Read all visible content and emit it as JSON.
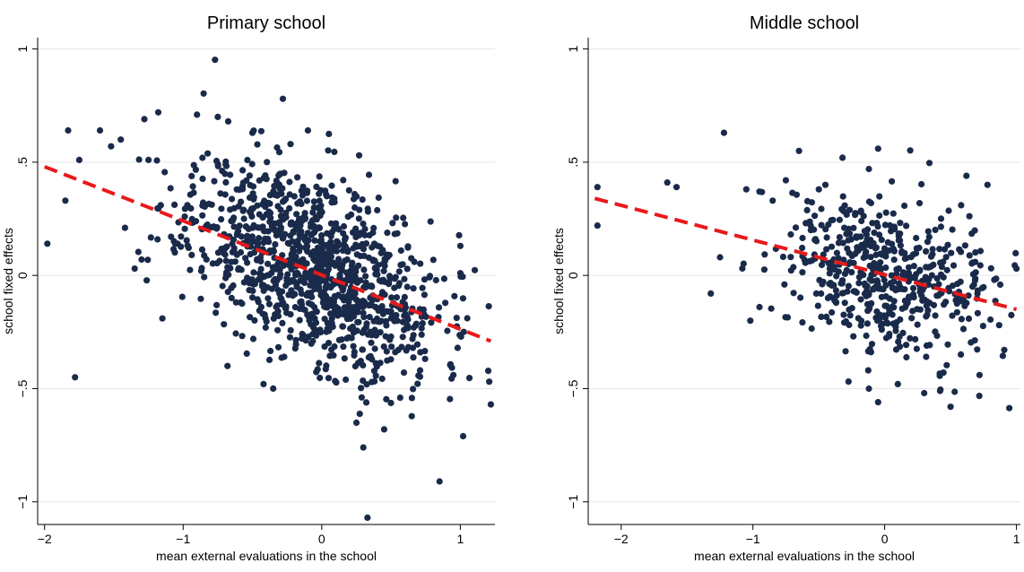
{
  "chart_data": [
    {
      "type": "scatter",
      "title": "Primary school",
      "xlabel": "mean external evaluations in the school",
      "ylabel": "school fixed effects",
      "xlim": [
        -2.05,
        1.25
      ],
      "ylim": [
        -1.1,
        1.05
      ],
      "xticks": [
        {
          "v": -2,
          "label": "−2"
        },
        {
          "v": -1,
          "label": "−1"
        },
        {
          "v": 0,
          "label": "0"
        },
        {
          "v": 1,
          "label": "1"
        }
      ],
      "yticks": [
        {
          "v": -1,
          "label": "−1"
        },
        {
          "v": -0.5,
          "label": "−.5"
        },
        {
          "v": 0,
          "label": "0"
        },
        {
          "v": 0.5,
          "label": ".5"
        },
        {
          "v": 1,
          "label": "1"
        }
      ],
      "grid": true,
      "legend": "none",
      "fit_line": {
        "x": [
          -2.0,
          1.22
        ],
        "y": [
          0.48,
          -0.29
        ]
      },
      "cloud": {
        "n": 1150,
        "x_mean": -0.05,
        "x_sd": 0.45,
        "y_mean": 0.03,
        "y_sd": 0.2,
        "slope": -0.24,
        "seed": 11
      },
      "points": [
        {
          "x": -1.98,
          "y": 0.14
        },
        {
          "x": -1.85,
          "y": 0.33
        },
        {
          "x": -1.83,
          "y": 0.64
        },
        {
          "x": -1.78,
          "y": -0.45
        },
        {
          "x": -1.75,
          "y": 0.51
        },
        {
          "x": -1.6,
          "y": 0.64
        },
        {
          "x": -1.52,
          "y": 0.57
        },
        {
          "x": -1.45,
          "y": 0.6
        },
        {
          "x": -1.28,
          "y": 0.69
        },
        {
          "x": -1.18,
          "y": 0.72
        },
        {
          "x": -1.25,
          "y": 0.51
        },
        {
          "x": -1.15,
          "y": -0.19
        },
        {
          "x": -0.28,
          "y": 0.78
        },
        {
          "x": 0.3,
          "y": -0.76
        },
        {
          "x": 0.33,
          "y": -1.07
        },
        {
          "x": 0.85,
          "y": -0.91
        },
        {
          "x": 1.02,
          "y": -0.71
        },
        {
          "x": 1.22,
          "y": -0.57
        },
        {
          "x": 1.0,
          "y": 0.01
        },
        {
          "x": 0.95,
          "y": -0.44
        },
        {
          "x": -0.9,
          "y": 0.71
        },
        {
          "x": -0.75,
          "y": 0.7
        },
        {
          "x": -0.5,
          "y": 0.63
        },
        {
          "x": -0.1,
          "y": 0.64
        },
        {
          "x": 0.45,
          "y": -0.68
        },
        {
          "x": 0.27,
          "y": 0.53
        },
        {
          "x": -0.68,
          "y": -0.4
        },
        {
          "x": -0.42,
          "y": -0.48
        },
        {
          "x": -1.42,
          "y": 0.21
        },
        {
          "x": -1.35,
          "y": 0.03
        },
        {
          "x": -1.3,
          "y": 0.07
        }
      ]
    },
    {
      "type": "scatter",
      "title": "Middle school",
      "xlabel": "mean external evaluations in the school",
      "ylabel": "school fixed effects",
      "xlim": [
        -2.25,
        1.03
      ],
      "ylim": [
        -1.1,
        1.05
      ],
      "xticks": [
        {
          "v": -2,
          "label": "−2"
        },
        {
          "v": -1,
          "label": "−1"
        },
        {
          "v": 0,
          "label": "0"
        },
        {
          "v": 1,
          "label": "1"
        }
      ],
      "yticks": [
        {
          "v": -1,
          "label": "−1"
        },
        {
          "v": -0.5,
          "label": "−.5"
        },
        {
          "v": 0,
          "label": "0"
        },
        {
          "v": 0.5,
          "label": ".5"
        },
        {
          "v": 1,
          "label": "1"
        }
      ],
      "grid": true,
      "legend": "none",
      "fit_line": {
        "x": [
          -2.2,
          1.0
        ],
        "y": [
          0.34,
          -0.15
        ]
      },
      "cloud": {
        "n": 520,
        "x_mean": 0.0,
        "x_sd": 0.4,
        "y_mean": 0.0,
        "y_sd": 0.17,
        "slope": -0.15,
        "seed": 29
      },
      "points": [
        {
          "x": -2.18,
          "y": 0.39
        },
        {
          "x": -2.18,
          "y": 0.22
        },
        {
          "x": -1.65,
          "y": 0.41
        },
        {
          "x": -1.58,
          "y": 0.39
        },
        {
          "x": -1.22,
          "y": 0.63
        },
        {
          "x": -1.32,
          "y": -0.08
        },
        {
          "x": -0.65,
          "y": 0.55
        },
        {
          "x": -0.32,
          "y": 0.52
        },
        {
          "x": -0.12,
          "y": 0.47
        },
        {
          "x": -0.12,
          "y": -0.08
        },
        {
          "x": -0.05,
          "y": 0.56
        },
        {
          "x": -0.12,
          "y": -0.5
        },
        {
          "x": -0.05,
          "y": -0.56
        },
        {
          "x": 0.1,
          "y": -0.48
        },
        {
          "x": 0.5,
          "y": -0.58
        },
        {
          "x": 0.42,
          "y": -0.51
        },
        {
          "x": 0.3,
          "y": -0.52
        },
        {
          "x": 0.72,
          "y": -0.44
        },
        {
          "x": 0.62,
          "y": 0.44
        },
        {
          "x": 0.78,
          "y": 0.4
        },
        {
          "x": 0.58,
          "y": 0.31
        },
        {
          "x": 1.0,
          "y": 0.03
        },
        {
          "x": -1.02,
          "y": -0.2
        },
        {
          "x": -0.95,
          "y": -0.14
        },
        {
          "x": -1.05,
          "y": 0.38
        },
        {
          "x": -0.95,
          "y": 0.37
        },
        {
          "x": -0.85,
          "y": 0.33
        },
        {
          "x": -0.75,
          "y": 0.42
        },
        {
          "x": -0.45,
          "y": 0.4
        },
        {
          "x": -0.5,
          "y": 0.38
        },
        {
          "x": -1.25,
          "y": 0.08
        }
      ]
    }
  ],
  "colors": {
    "points": "#1a2a4a",
    "fit_line": "#e8191a",
    "grid": "#e6e6e6",
    "axis": "#000000"
  }
}
